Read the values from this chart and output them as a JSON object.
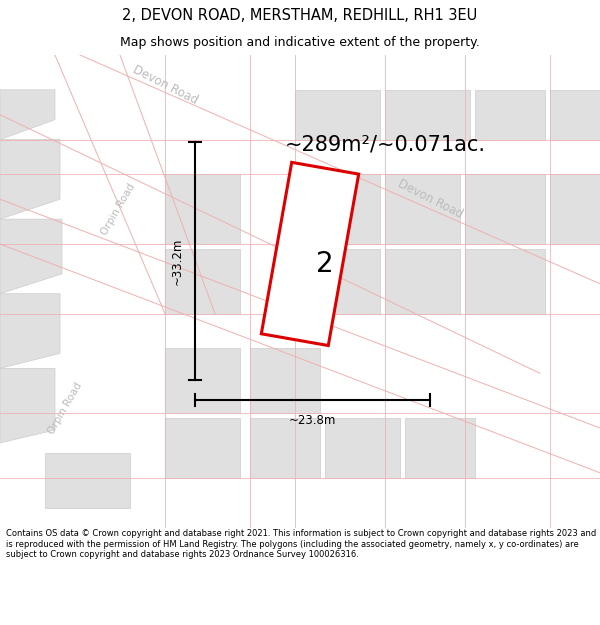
{
  "title": "2, DEVON ROAD, MERSTHAM, REDHILL, RH1 3EU",
  "subtitle": "Map shows position and indicative extent of the property.",
  "area_text": "~289m²/~0.071ac.",
  "dim_width": "~23.8m",
  "dim_height": "~33.2m",
  "property_number": "2",
  "footer": "Contains OS data © Crown copyright and database right 2021. This information is subject to Crown copyright and database rights 2023 and is reproduced with the permission of HM Land Registry. The polygons (including the associated geometry, namely x, y co-ordinates) are subject to Crown copyright and database rights 2023 Ordnance Survey 100026316.",
  "map_bg": "#f8f8f8",
  "building_fill": "#e0e0e0",
  "building_edge": "#cccccc",
  "road_line_color": "#f0b0b0",
  "property_edge_color": "#dd0000",
  "title_fontsize": 10.5,
  "subtitle_fontsize": 9,
  "area_fontsize": 15,
  "dim_fontsize": 8.5,
  "footer_fontsize": 6.0,
  "road_label_color": "#bbbbbb",
  "road_label_fontsize": 8.5
}
